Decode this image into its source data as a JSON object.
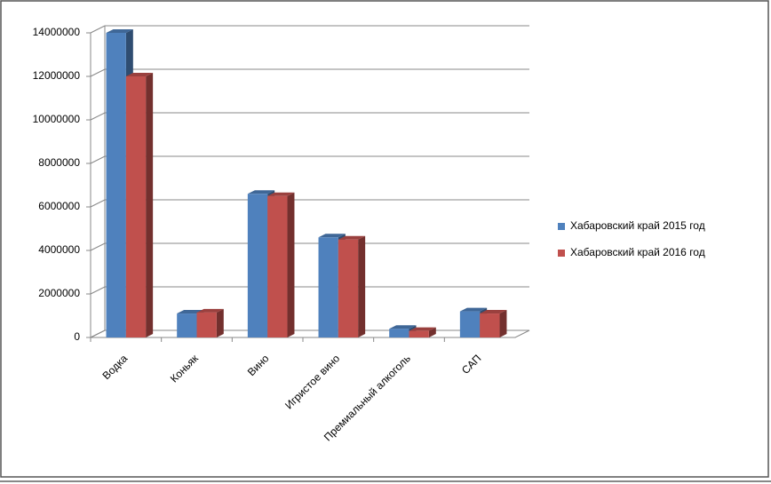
{
  "chart_data": {
    "type": "bar3d",
    "categories": [
      "Водка",
      "Коньяк",
      "Вино",
      "Игристое вино",
      "Премиальный алкоголь",
      "САП"
    ],
    "series": [
      {
        "name": "Хабаровский край 2015 год",
        "color": "#4f81bd",
        "values": [
          14000000,
          1100000,
          6600000,
          4600000,
          400000,
          1200000
        ]
      },
      {
        "name": "Хабаровский край 2016 год",
        "color": "#c0504d",
        "values": [
          12000000,
          1150000,
          6500000,
          4500000,
          300000,
          1100000
        ]
      }
    ],
    "ylim": [
      0,
      14000000
    ],
    "yticks": [
      0,
      2000000,
      4000000,
      6000000,
      8000000,
      10000000,
      12000000,
      14000000
    ],
    "grid": true,
    "legend": "right"
  }
}
